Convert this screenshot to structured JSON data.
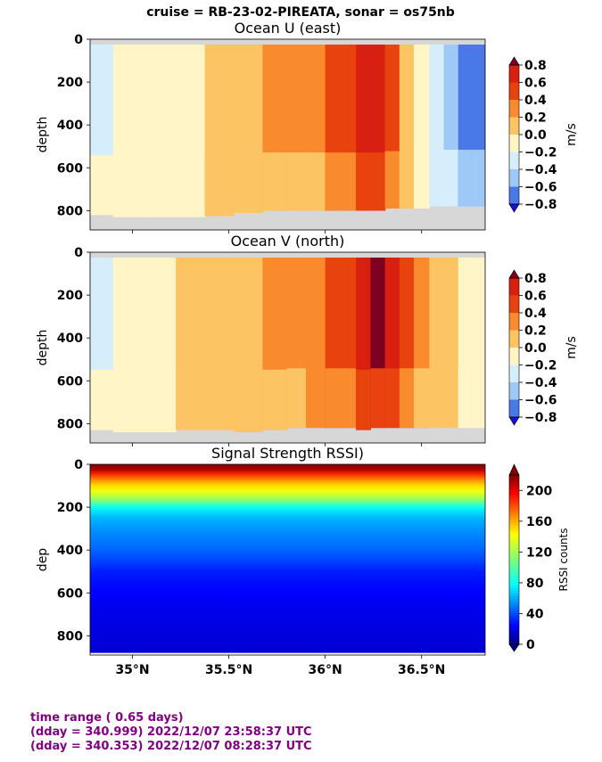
{
  "suptitle": "cruise = RB-23-02-PIREATA,  sonar = os75nb",
  "shared_xticks": [
    "35°N",
    "35.5°N",
    "36°N",
    "36.5°N"
  ],
  "footer": {
    "line1": "time range ( 0.65 days)",
    "line2": "(dday = 340.999) 2022/12/07 23:58:37 UTC",
    "line3": "(dday = 340.353) 2022/12/07 08:28:37 UTC"
  },
  "colors": {
    "vel_levels": [
      "#1a10d6",
      "#4a78e6",
      "#9ec8f5",
      "#d6edfb",
      "#fff5c6",
      "#fdc463",
      "#f98a2d",
      "#e8420f",
      "#d81f10",
      "#7d0022"
    ],
    "missing": "#d7d7d7",
    "footer": "#800080"
  },
  "chart_data": [
    {
      "type": "heatmap",
      "title": "Ocean U (east)",
      "ylabel": "depth",
      "xlabel": "",
      "x_range_deg_N": [
        34.78,
        36.83
      ],
      "ylim": [
        890,
        0
      ],
      "yticks": [
        "0",
        "200",
        "400",
        "600",
        "800"
      ],
      "colorbar": {
        "label": "m/s",
        "ticks": [
          "0.8",
          "0.6",
          "0.4",
          "0.2",
          "0.0",
          "−0.2",
          "−0.4",
          "−0.6",
          "−0.8"
        ],
        "range": [
          -0.8,
          0.8
        ]
      },
      "bands_lat": [
        34.8,
        35.0,
        35.15,
        35.3,
        35.45,
        35.6,
        35.75,
        35.85,
        35.95,
        36.05,
        36.12,
        36.2,
        36.27,
        36.35,
        36.42,
        36.5,
        36.58,
        36.65,
        36.73,
        36.8
      ],
      "bands_value": [
        -0.25,
        -0.1,
        -0.1,
        -0.05,
        0.05,
        0.15,
        0.3,
        0.3,
        0.3,
        0.45,
        0.6,
        0.7,
        0.8,
        0.5,
        0.2,
        -0.15,
        -0.35,
        -0.55,
        -0.75,
        -0.75
      ],
      "data_top_m": 25,
      "max_depth_m": [
        820,
        830,
        830,
        830,
        825,
        810,
        800,
        800,
        800,
        800,
        800,
        800,
        800,
        790,
        790,
        790,
        780,
        780,
        780,
        780
      ]
    },
    {
      "type": "heatmap",
      "title": "Ocean V (north)",
      "ylabel": "depth",
      "xlabel": "",
      "x_range_deg_N": [
        34.78,
        36.83
      ],
      "ylim": [
        890,
        0
      ],
      "yticks": [
        "0",
        "200",
        "400",
        "600",
        "800"
      ],
      "colorbar": {
        "label": "m/s",
        "ticks": [
          "0.8",
          "0.6",
          "0.4",
          "0.2",
          "0.0",
          "−0.2",
          "−0.4",
          "−0.6",
          "−0.8"
        ],
        "range": [
          -0.8,
          0.8
        ]
      },
      "bands_lat": [
        34.8,
        35.0,
        35.15,
        35.3,
        35.45,
        35.6,
        35.75,
        35.85,
        35.95,
        36.05,
        36.12,
        36.2,
        36.27,
        36.35,
        36.42,
        36.5,
        36.58,
        36.65,
        36.73,
        36.8
      ],
      "bands_value": [
        -0.3,
        -0.1,
        -0.05,
        0.05,
        0.1,
        0.1,
        0.25,
        0.3,
        0.35,
        0.45,
        0.6,
        0.75,
        0.85,
        0.7,
        0.5,
        0.3,
        0.2,
        0.05,
        -0.05,
        -0.1
      ],
      "data_top_m": 25,
      "max_depth_m": [
        830,
        840,
        840,
        830,
        830,
        840,
        830,
        820,
        820,
        820,
        820,
        830,
        820,
        820,
        820,
        820,
        820,
        820,
        820,
        820
      ]
    },
    {
      "type": "heatmap",
      "title": "Signal Strength RSSI)",
      "ylabel": "dep",
      "xlabel": "",
      "x_range_deg_N": [
        34.78,
        36.83
      ],
      "ylim": [
        890,
        0
      ],
      "yticks": [
        "0",
        "200",
        "400",
        "600",
        "800"
      ],
      "colorbar": {
        "label": "RSSI counts",
        "ticks": [
          "200",
          "160",
          "120",
          "80",
          "40",
          "0"
        ],
        "range": [
          0,
          220
        ]
      },
      "depth_profile_m": [
        0,
        25,
        50,
        75,
        100,
        125,
        150,
        175,
        200,
        250,
        300,
        350,
        400,
        450,
        500,
        600,
        700,
        800,
        880
      ],
      "depth_profile_rssi": [
        220,
        210,
        185,
        165,
        150,
        140,
        125,
        105,
        80,
        62,
        55,
        50,
        45,
        38,
        30,
        24,
        20,
        18,
        16
      ]
    }
  ]
}
